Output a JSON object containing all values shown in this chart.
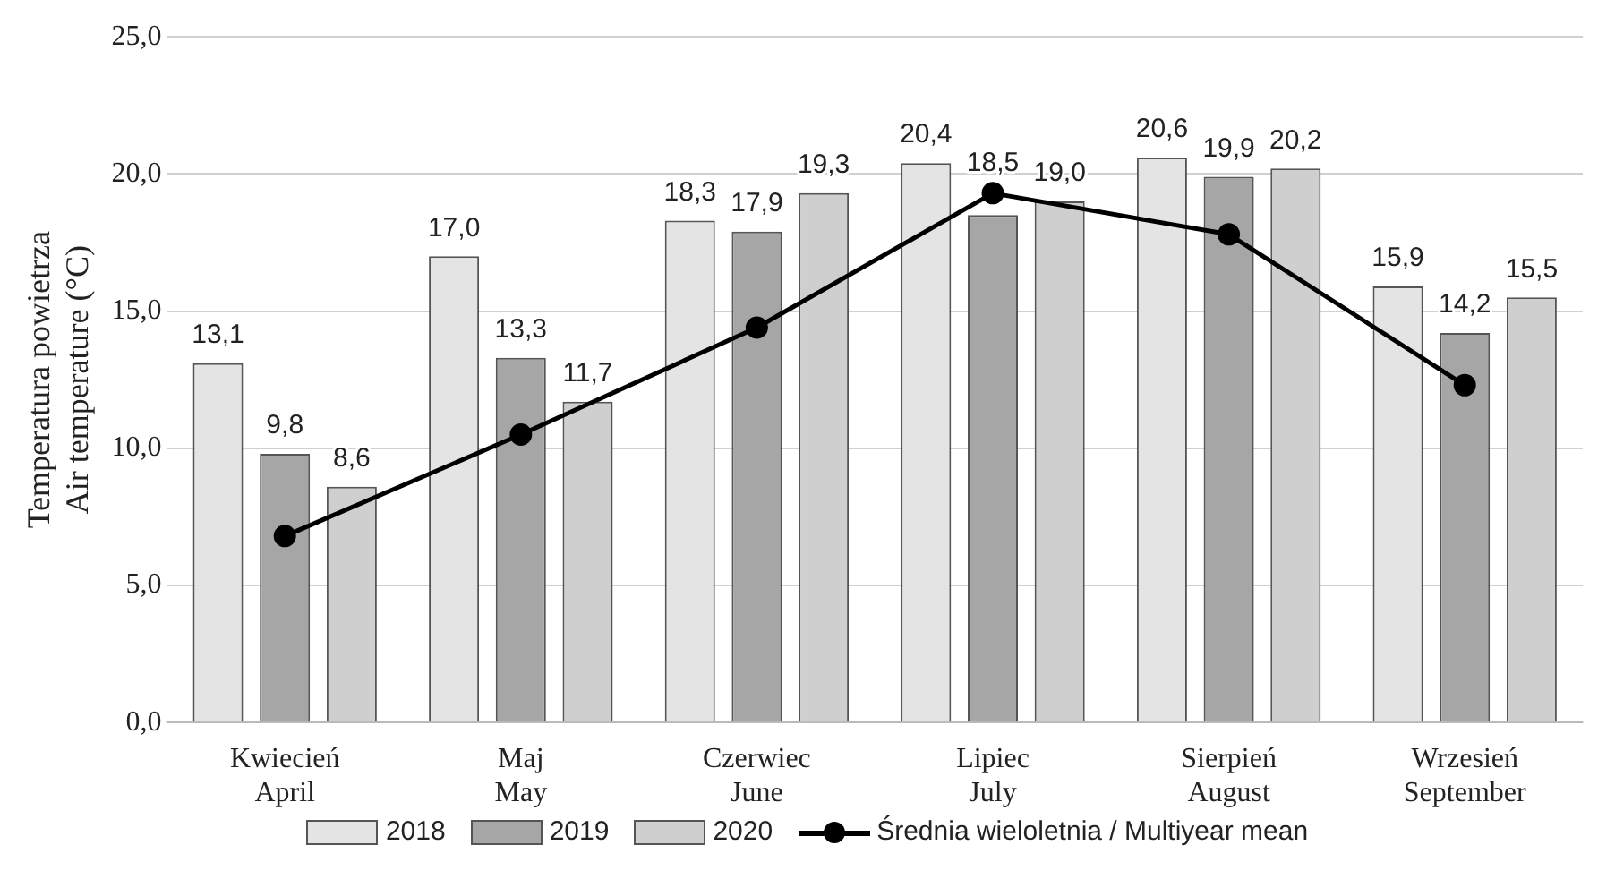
{
  "chart_data": {
    "type": "bar",
    "ylabel": "Temperatura powietrza\nAir temperature (°C)",
    "categories": [
      "Kwiecień\nApril",
      "Maj\nMay",
      "Czerwiec\nJune",
      "Lipiec\nJuly",
      "Sierpień\nAugust",
      "Wrzesień\nSeptember"
    ],
    "series": [
      {
        "name": "2018",
        "color": "#e4e4e4",
        "values": [
          13.1,
          17.0,
          18.3,
          20.4,
          20.6,
          15.9
        ],
        "value_labels": [
          "13,1",
          "17,0",
          "18,3",
          "20,4",
          "20,6",
          "15,9"
        ]
      },
      {
        "name": "2019",
        "color": "#a6a6a6",
        "values": [
          9.8,
          13.3,
          17.9,
          18.5,
          19.9,
          14.2
        ],
        "value_labels": [
          "9,8",
          "13,3",
          "17,9",
          "18,5",
          "19,9",
          "14,2"
        ]
      },
      {
        "name": "2020",
        "color": "#cfcfcf",
        "values": [
          8.6,
          11.7,
          19.3,
          19.0,
          20.2,
          15.5
        ],
        "value_labels": [
          "8,6",
          "11,7",
          "19,3",
          "19,0",
          "20,2",
          "15,5"
        ]
      },
      {
        "name": "Średnia wieloletnia / Multiyear mean",
        "type": "line",
        "color": "#000000",
        "marker": "circle",
        "values": [
          6.8,
          10.5,
          14.4,
          19.3,
          17.8,
          12.3
        ]
      }
    ],
    "ylim": [
      0,
      25
    ],
    "yticks": [
      {
        "value": 0,
        "label": "0,0"
      },
      {
        "value": 5,
        "label": "5,0"
      },
      {
        "value": 10,
        "label": "10,0"
      },
      {
        "value": 15,
        "label": "15,0"
      },
      {
        "value": 20,
        "label": "20,0"
      },
      {
        "value": 25,
        "label": "25,0"
      }
    ],
    "grid": "y",
    "legend": "bottom"
  }
}
